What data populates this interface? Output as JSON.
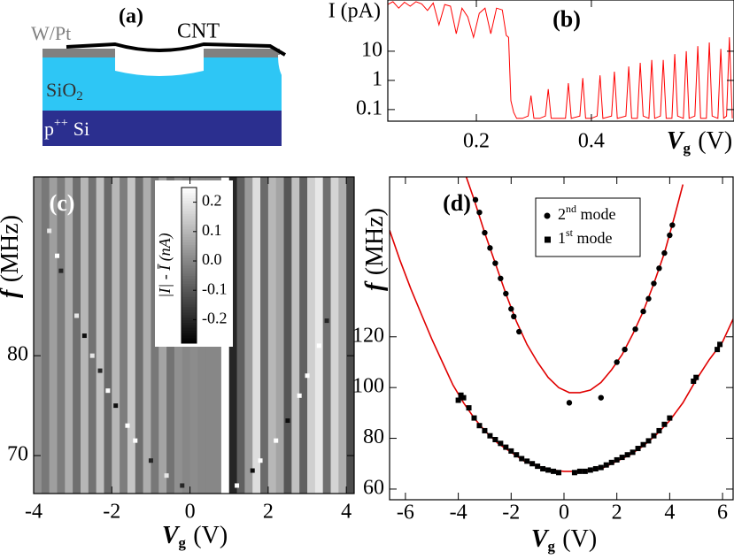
{
  "panel_a": {
    "label": "(a)",
    "metal": "W/Pt",
    "nanotube": "CNT",
    "oxide": {
      "base": "SiO",
      "subscript": "2"
    },
    "substrate": {
      "base": "p",
      "superscript": "++",
      "rest": "Si"
    }
  },
  "chart_data": [
    {
      "type": "line",
      "label": "(b)",
      "ylabel": "I (pA)",
      "xlabel": {
        "symbol": "V",
        "subscript": "g",
        "unit": "(V)"
      },
      "ylog": true,
      "xlim": [
        0.046,
        0.648
      ],
      "ylim": [
        0.04,
        570
      ],
      "xticks": [
        0.2,
        0.4
      ],
      "yticks": [
        0.1,
        1,
        10
      ],
      "series": [
        {
          "color": "#ff0000",
          "x": [
            0.046,
            0.055,
            0.065,
            0.075,
            0.085,
            0.095,
            0.105,
            0.115,
            0.125,
            0.135,
            0.145,
            0.155,
            0.165,
            0.175,
            0.185,
            0.195,
            0.205,
            0.215,
            0.225,
            0.235,
            0.245,
            0.252,
            0.256,
            0.26,
            0.265,
            0.27,
            0.28,
            0.29,
            0.295,
            0.3,
            0.31,
            0.32,
            0.325,
            0.33,
            0.34,
            0.355,
            0.36,
            0.365,
            0.38,
            0.385,
            0.39,
            0.4,
            0.41,
            0.415,
            0.42,
            0.435,
            0.44,
            0.445,
            0.46,
            0.465,
            0.47,
            0.48,
            0.485,
            0.49,
            0.5,
            0.505,
            0.51,
            0.52,
            0.525,
            0.53,
            0.54,
            0.545,
            0.55,
            0.56,
            0.565,
            0.57,
            0.58,
            0.585,
            0.59,
            0.6,
            0.605,
            0.61,
            0.62,
            0.625,
            0.63,
            0.635,
            0.64,
            0.645
          ],
          "values": [
            400,
            500,
            300,
            480,
            350,
            500,
            420,
            250,
            450,
            80,
            400,
            350,
            40,
            300,
            150,
            30,
            200,
            300,
            40,
            300,
            260,
            35,
            30,
            0.2,
            0.08,
            0.05,
            0.05,
            0.06,
            0.3,
            0.05,
            0.05,
            0.06,
            0.5,
            0.05,
            0.05,
            0.05,
            0.8,
            0.05,
            0.06,
            1.2,
            0.05,
            0.05,
            0.06,
            1.5,
            0.05,
            0.06,
            2,
            0.05,
            0.06,
            3,
            0.05,
            0.05,
            4,
            0.06,
            0.05,
            5,
            0.05,
            0.06,
            5,
            0.05,
            0.05,
            8,
            0.06,
            0.05,
            10,
            0.05,
            0.06,
            15,
            0.05,
            0.05,
            20,
            0.06,
            0.05,
            12,
            0.05,
            0.06,
            30,
            0.05
          ]
        }
      ]
    },
    {
      "type": "heatmap",
      "label": "(c)",
      "xlabel": {
        "symbol": "V",
        "subscript": "g",
        "unit": "(V)"
      },
      "ylabel": {
        "symbol": "f",
        "unit": "(MHz)"
      },
      "xlim": [
        -4,
        4.2
      ],
      "ylim": [
        66.2,
        97.9
      ],
      "xticks": [
        -4,
        -2,
        0,
        2,
        4
      ],
      "yticks": [
        70,
        80
      ],
      "x_edges": [
        -4.0,
        -3.8,
        -3.6,
        -3.4,
        -3.2,
        -3.0,
        -2.8,
        -2.6,
        -2.4,
        -2.2,
        -2.0,
        -1.8,
        -1.6,
        -1.4,
        -1.2,
        -1.0,
        -0.8,
        -0.6,
        -0.4,
        -0.2,
        0.0,
        0.2,
        0.4,
        0.6,
        0.8,
        1.0,
        1.2,
        1.4,
        1.6,
        1.8,
        2.0,
        2.2,
        2.4,
        2.6,
        2.8,
        3.0,
        3.2,
        3.4,
        3.6,
        3.8,
        4.0,
        4.2
      ],
      "z": [
        0.02,
        -0.03,
        0.05,
        -0.02,
        0.08,
        -0.05,
        0.1,
        -0.04,
        0.12,
        -0.06,
        0.1,
        -0.02,
        0.13,
        -0.05,
        0.08,
        -0.03,
        0.06,
        -0.04,
        0.02,
        0.0,
        0.01,
        0.0,
        0.0,
        0.0,
        0.25,
        -0.2,
        -0.08,
        0.04,
        0.18,
        -0.06,
        0.1,
        0.06,
        -0.1,
        0.12,
        -0.08,
        0.15,
        0.2,
        -0.05,
        0.16,
        0.08,
        -0.12
      ],
      "trace": {
        "x": [
          -3.6,
          -3.4,
          -3.3,
          -2.9,
          -2.7,
          -2.5,
          -2.3,
          -2.1,
          -1.9,
          -1.6,
          -1.4,
          -1.0,
          -0.6,
          -0.2,
          1.2,
          1.6,
          1.8,
          2.2,
          2.5,
          2.8,
          3.0,
          3.3,
          3.5
        ],
        "y": [
          92.5,
          90,
          88.5,
          84,
          82,
          80,
          78.5,
          76.5,
          75,
          73,
          71.5,
          69.5,
          68,
          67,
          67,
          68.5,
          69.5,
          71.5,
          73.5,
          76,
          78,
          81,
          83.5
        ],
        "z": [
          0.2,
          0.25,
          -0.2,
          0.2,
          -0.25,
          0.2,
          -0.2,
          0.25,
          -0.25,
          0.25,
          0.25,
          -0.2,
          0.2,
          -0.2,
          0.25,
          -0.25,
          0.25,
          0.25,
          -0.25,
          0.25,
          0.25,
          0.25,
          -0.2
        ]
      },
      "colorbar": {
        "label": "|I| - Ī (nA)",
        "zlim": [
          -0.28,
          0.25
        ],
        "ticks": [
          0.2,
          0.1,
          {
            "value": 0,
            "label": "0.0"
          },
          -0.1,
          -0.2
        ]
      }
    },
    {
      "type": "scatter",
      "label": "(d)",
      "xlabel": {
        "symbol": "V",
        "subscript": "g",
        "unit": "(V)"
      },
      "ylabel": {
        "symbol": "f",
        "unit": "(MHz)"
      },
      "xlim": [
        -6.6,
        6.4
      ],
      "ylim": [
        55.8,
        183
      ],
      "xticks": [
        -6,
        -4,
        -2,
        0,
        2,
        4,
        6
      ],
      "yticks": [
        60,
        80,
        100,
        120
      ],
      "series": [
        {
          "name": "2nd mode",
          "marker": "circle",
          "color": "#000000",
          "x": [
            -3.35,
            -3.2,
            -3.0,
            -2.8,
            -2.6,
            -2.4,
            -2.2,
            -2.0,
            -1.9,
            -1.7,
            0.2,
            1.4,
            2.0,
            2.3,
            2.7,
            3.0,
            3.2,
            3.4,
            3.6,
            3.8,
            4.0,
            4.1
          ],
          "values": [
            174,
            169,
            161,
            155,
            149,
            143,
            137,
            131,
            128,
            122,
            94,
            96,
            110,
            115,
            123,
            130,
            135,
            141,
            147,
            153,
            160,
            164
          ]
        },
        {
          "name": "1st mode",
          "marker": "square",
          "color": "#000000",
          "x": [
            -4.0,
            -3.9,
            -3.8,
            -3.6,
            -3.4,
            -3.2,
            -3.0,
            -2.8,
            -2.6,
            -2.4,
            -2.2,
            -2.0,
            -1.8,
            -1.6,
            -1.4,
            -1.2,
            -1.0,
            -0.8,
            -0.6,
            -0.4,
            -0.2,
            0.4,
            0.6,
            0.8,
            1.0,
            1.2,
            1.4,
            1.6,
            1.8,
            2.0,
            2.2,
            2.4,
            2.6,
            2.8,
            3.0,
            3.2,
            3.4,
            3.6,
            3.8,
            4.0,
            4.9,
            5.0,
            5.8,
            5.9
          ],
          "values": [
            95,
            97,
            96,
            92,
            88,
            85,
            83,
            81,
            79.5,
            78,
            76.5,
            75,
            73.5,
            72,
            71,
            70,
            69,
            68,
            67.5,
            67,
            66.5,
            66.5,
            67,
            67,
            67.5,
            68,
            68.5,
            69.5,
            70.5,
            71.5,
            72.5,
            73.5,
            74.5,
            76,
            77.5,
            79,
            81,
            83,
            85.5,
            88,
            102.5,
            104,
            115,
            117
          ]
        },
        {
          "marker": "line",
          "color": "#e00000",
          "x": [
            -3.7,
            -3.4,
            -3.0,
            -2.6,
            -2.2,
            -1.8,
            -1.4,
            -1.0,
            -0.6,
            -0.2,
            0.2,
            0.6,
            1.0,
            1.4,
            1.8,
            2.2,
            2.6,
            3.0,
            3.4,
            3.8,
            4.2,
            4.5
          ],
          "values": [
            183,
            174,
            161,
            149,
            137,
            126,
            117,
            110,
            104,
            100,
            98,
            98,
            99,
            102,
            107,
            113,
            121,
            130,
            141,
            153,
            168,
            180
          ]
        },
        {
          "marker": "line",
          "color": "#e00000",
          "x": [
            -6.6,
            -6.2,
            -5.8,
            -5.4,
            -5.0,
            -4.6,
            -4.2,
            -3.8,
            -3.4,
            -3.0,
            -2.5,
            -2.0,
            -1.5,
            -1.0,
            -0.5,
            0,
            0.5,
            1.0,
            1.5,
            2.0,
            2.5,
            3.0,
            3.5,
            4.0,
            4.5,
            5.0,
            5.5,
            6.0,
            6.4
          ],
          "values": [
            162,
            150,
            139,
            129,
            119,
            110,
            101,
            94,
            88,
            83,
            78,
            74.5,
            71,
            69,
            67.5,
            67,
            67,
            67.5,
            68.5,
            71,
            73.5,
            77,
            81.5,
            87,
            94,
            103,
            111,
            118,
            127
          ]
        }
      ]
    }
  ]
}
